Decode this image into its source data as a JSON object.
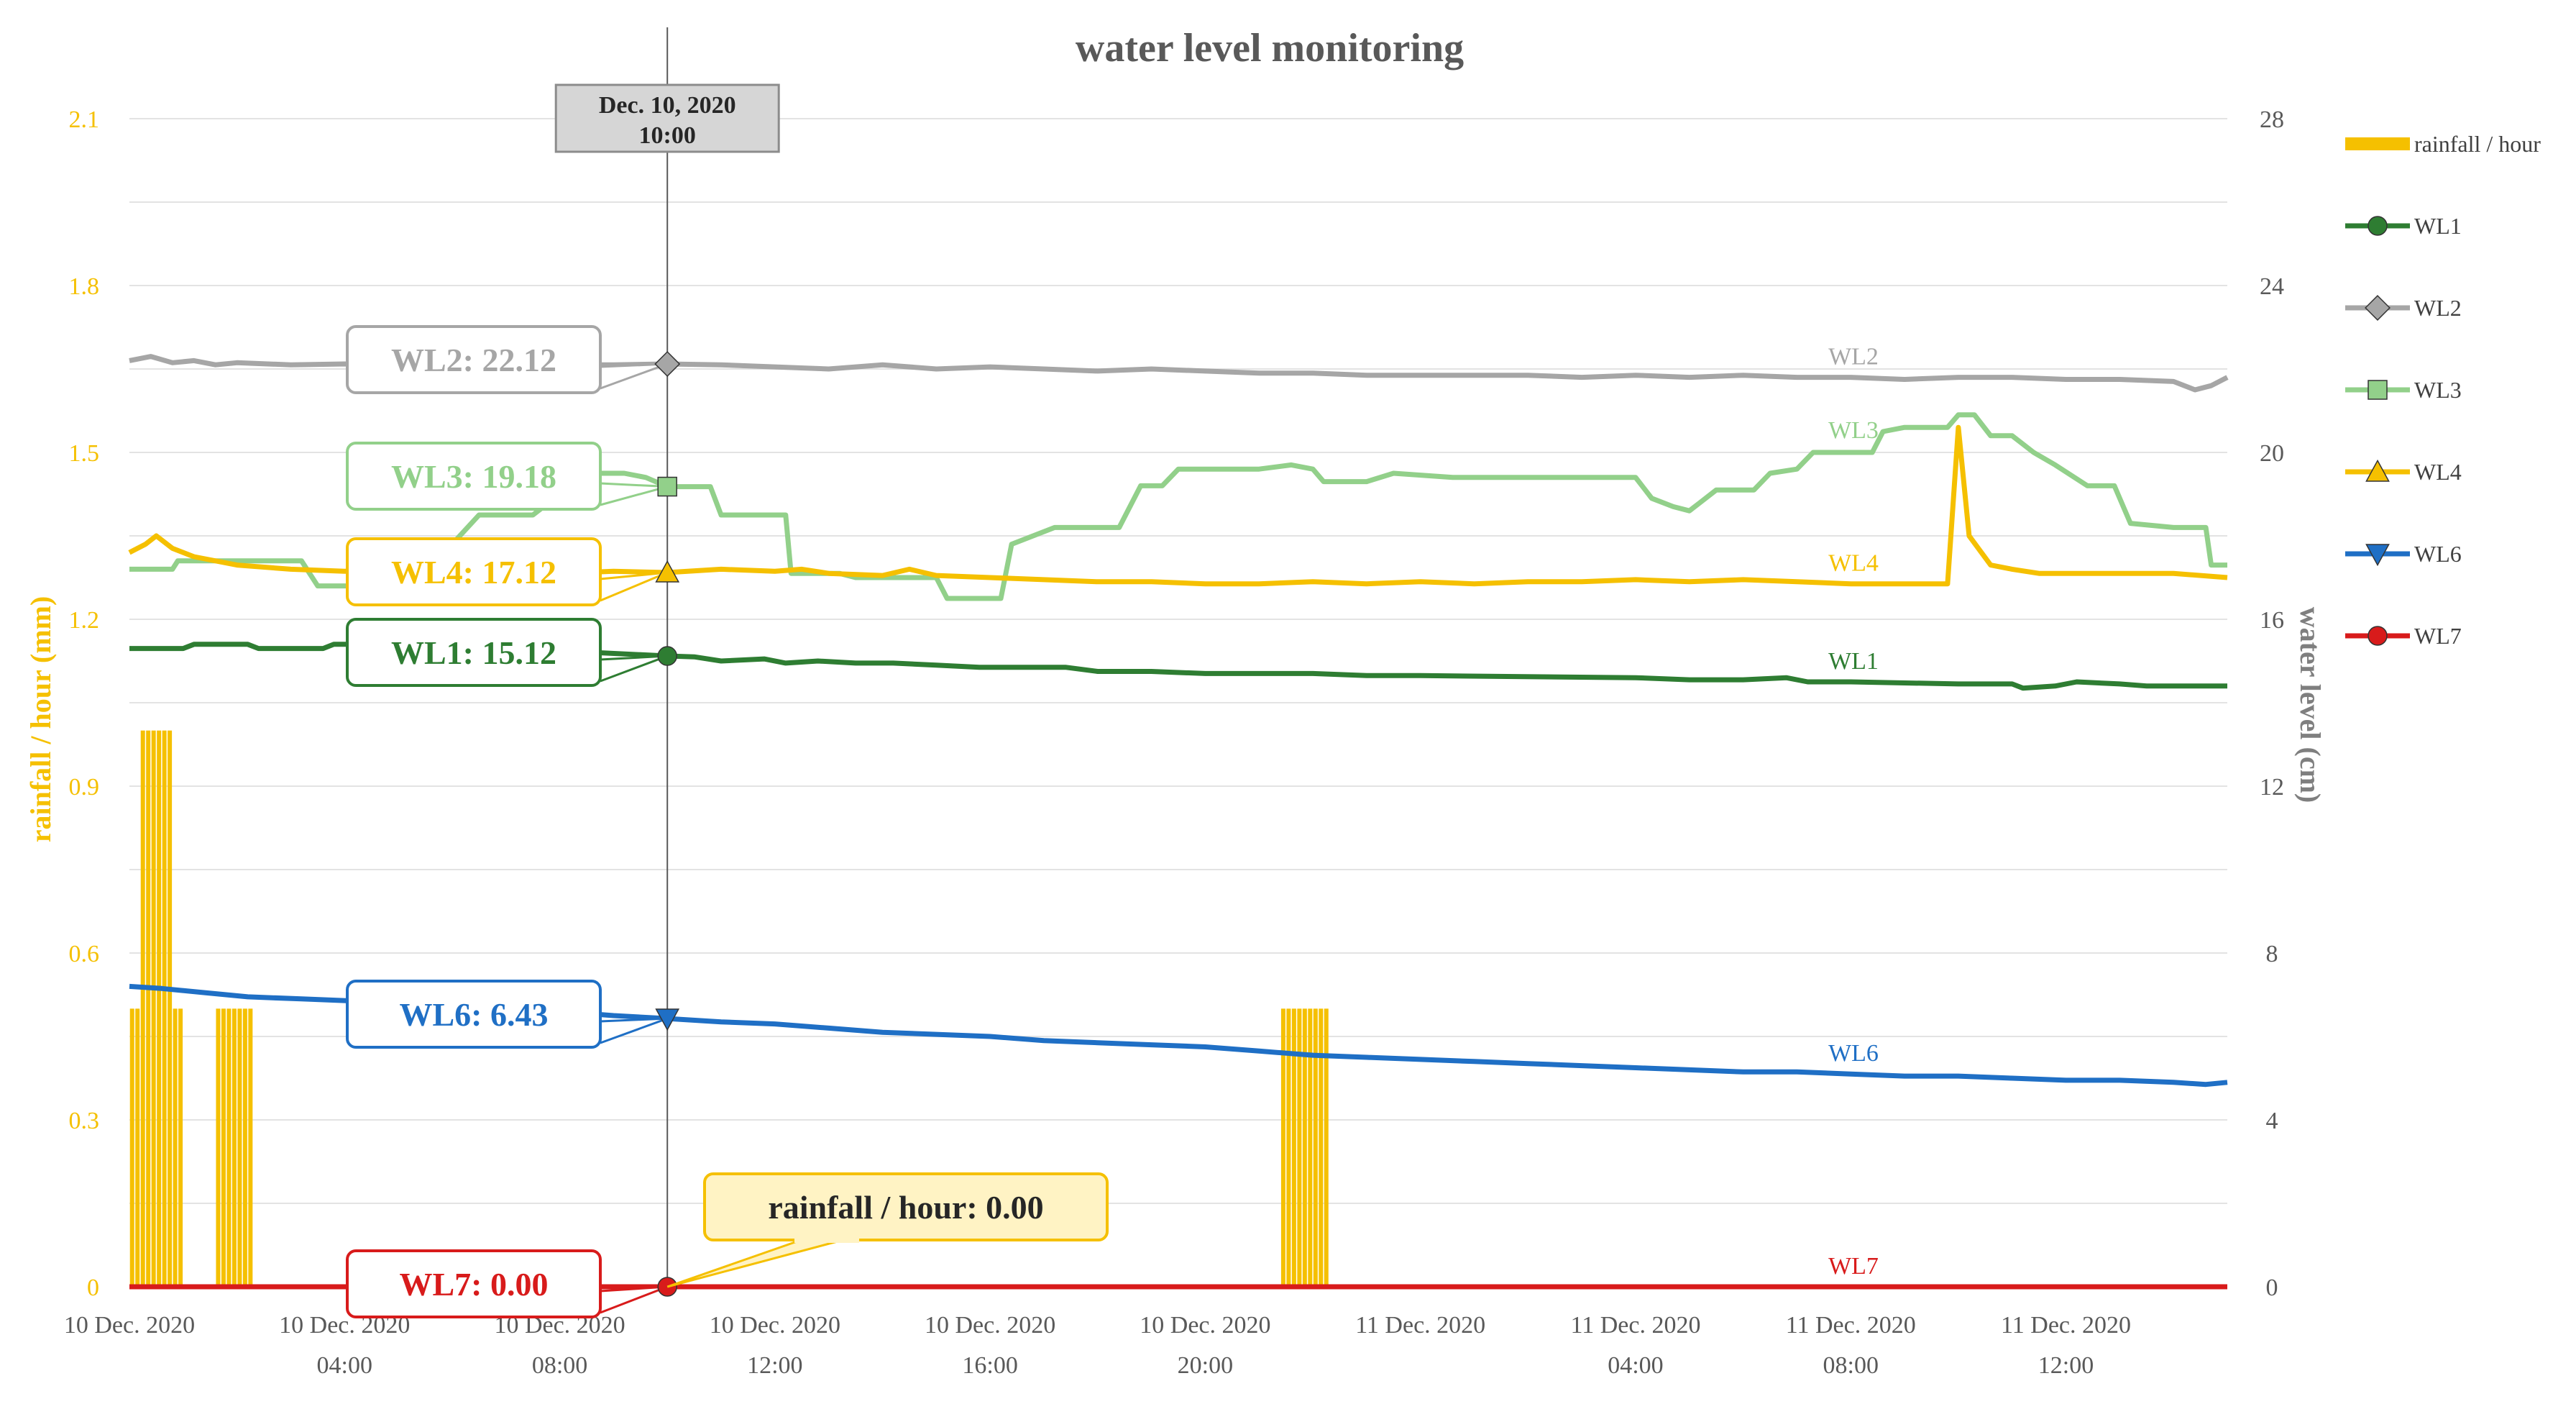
{
  "chart_data": {
    "type": "line",
    "title": "water level monitoring",
    "y_left_label": "rainfall / hour (mm)",
    "y_right_label": "water level (cm)",
    "y_left_range": [
      0,
      2.1
    ],
    "y_right_range": [
      0,
      28
    ],
    "y_left_ticks": [
      "0",
      "0.3",
      "0.6",
      "0.9",
      "1.2",
      "1.5",
      "1.8",
      "2.1"
    ],
    "y_right_ticks": [
      "0",
      "4",
      "8",
      "12",
      "16",
      "20",
      "24",
      "28"
    ],
    "x_range_hours": [
      0,
      39
    ],
    "x_ticks": [
      {
        "h": 0,
        "line1": "10 Dec. 2020",
        "line2": ""
      },
      {
        "h": 4,
        "line1": "10 Dec. 2020",
        "line2": "04:00"
      },
      {
        "h": 8,
        "line1": "10 Dec. 2020",
        "line2": "08:00"
      },
      {
        "h": 12,
        "line1": "10 Dec. 2020",
        "line2": "12:00"
      },
      {
        "h": 16,
        "line1": "10 Dec. 2020",
        "line2": "16:00"
      },
      {
        "h": 20,
        "line1": "10 Dec. 2020",
        "line2": "20:00"
      },
      {
        "h": 24,
        "line1": "11 Dec. 2020",
        "line2": ""
      },
      {
        "h": 28,
        "line1": "11 Dec. 2020",
        "line2": "04:00"
      },
      {
        "h": 32,
        "line1": "11 Dec. 2020",
        "line2": "08:00"
      },
      {
        "h": 36,
        "line1": "11 Dec. 2020",
        "line2": "12:00"
      }
    ],
    "cursor": {
      "hour": 10,
      "line1": "Dec. 10, 2020",
      "line2": "10:00"
    },
    "rainfall": {
      "name": "rainfall / hour",
      "color": "#F5C000",
      "bars": [
        {
          "h": 0.05,
          "v": 0.5
        },
        {
          "h": 0.15,
          "v": 0.5
        },
        {
          "h": 0.25,
          "v": 1.0
        },
        {
          "h": 0.35,
          "v": 1.0
        },
        {
          "h": 0.45,
          "v": 1.0
        },
        {
          "h": 0.55,
          "v": 1.0
        },
        {
          "h": 0.65,
          "v": 1.0
        },
        {
          "h": 0.75,
          "v": 1.0
        },
        {
          "h": 0.85,
          "v": 0.5
        },
        {
          "h": 0.95,
          "v": 0.5
        },
        {
          "h": 1.65,
          "v": 0.5
        },
        {
          "h": 1.75,
          "v": 0.5
        },
        {
          "h": 1.85,
          "v": 0.5
        },
        {
          "h": 1.95,
          "v": 0.5
        },
        {
          "h": 2.05,
          "v": 0.5
        },
        {
          "h": 2.15,
          "v": 0.5
        },
        {
          "h": 2.25,
          "v": 0.5
        },
        {
          "h": 21.45,
          "v": 0.5
        },
        {
          "h": 21.55,
          "v": 0.5
        },
        {
          "h": 21.65,
          "v": 0.5
        },
        {
          "h": 21.75,
          "v": 0.5
        },
        {
          "h": 21.85,
          "v": 0.5
        },
        {
          "h": 21.95,
          "v": 0.5
        },
        {
          "h": 22.05,
          "v": 0.5
        },
        {
          "h": 22.15,
          "v": 0.5
        },
        {
          "h": 22.25,
          "v": 0.5
        }
      ]
    },
    "series": [
      {
        "name": "WL1",
        "color": "#2E7D32",
        "marker": "circle",
        "callout": "WL1: 15.12",
        "cursor_value": 15.12,
        "points": [
          [
            0,
            15.3
          ],
          [
            1,
            15.3
          ],
          [
            1.2,
            15.4
          ],
          [
            2.2,
            15.4
          ],
          [
            2.4,
            15.3
          ],
          [
            3.6,
            15.3
          ],
          [
            3.8,
            15.4
          ],
          [
            4.2,
            15.4
          ],
          [
            4.4,
            15.3
          ],
          [
            5,
            15.3
          ],
          [
            8.7,
            15.2
          ],
          [
            10,
            15.12
          ],
          [
            10.5,
            15.1
          ],
          [
            11,
            15.0
          ],
          [
            11.8,
            15.05
          ],
          [
            12.2,
            14.95
          ],
          [
            12.8,
            15.0
          ],
          [
            13.5,
            14.95
          ],
          [
            14.2,
            14.95
          ],
          [
            15,
            14.9
          ],
          [
            15.8,
            14.85
          ],
          [
            16.2,
            14.85
          ],
          [
            17.4,
            14.85
          ],
          [
            18,
            14.75
          ],
          [
            19,
            14.75
          ],
          [
            20,
            14.7
          ],
          [
            21,
            14.7
          ],
          [
            22,
            14.7
          ],
          [
            23,
            14.65
          ],
          [
            24,
            14.65
          ],
          [
            28,
            14.6
          ],
          [
            29,
            14.55
          ],
          [
            30,
            14.55
          ],
          [
            30.8,
            14.6
          ],
          [
            31.2,
            14.5
          ],
          [
            32,
            14.5
          ],
          [
            34,
            14.45
          ],
          [
            35,
            14.45
          ],
          [
            35.2,
            14.35
          ],
          [
            35.8,
            14.4
          ],
          [
            36.2,
            14.5
          ],
          [
            37,
            14.45
          ],
          [
            37.5,
            14.4
          ],
          [
            39,
            14.4
          ]
        ]
      },
      {
        "name": "WL2",
        "color": "#A6A6A6",
        "marker": "diamond",
        "callout": "WL2: 22.12",
        "cursor_value": 22.12,
        "points": [
          [
            0,
            22.2
          ],
          [
            0.4,
            22.3
          ],
          [
            0.8,
            22.15
          ],
          [
            1.2,
            22.2
          ],
          [
            1.6,
            22.1
          ],
          [
            2,
            22.15
          ],
          [
            3,
            22.1
          ],
          [
            4,
            22.12
          ],
          [
            5,
            22.1
          ],
          [
            9,
            22.1
          ],
          [
            10,
            22.12
          ],
          [
            11,
            22.1
          ],
          [
            12,
            22.05
          ],
          [
            13,
            22.0
          ],
          [
            14,
            22.1
          ],
          [
            15,
            22.0
          ],
          [
            16,
            22.05
          ],
          [
            17,
            22.0
          ],
          [
            18,
            21.95
          ],
          [
            19,
            22.0
          ],
          [
            20,
            21.95
          ],
          [
            21,
            21.9
          ],
          [
            22,
            21.9
          ],
          [
            23,
            21.85
          ],
          [
            24,
            21.85
          ],
          [
            25,
            21.85
          ],
          [
            26,
            21.85
          ],
          [
            27,
            21.8
          ],
          [
            28,
            21.85
          ],
          [
            29,
            21.8
          ],
          [
            30,
            21.85
          ],
          [
            31,
            21.8
          ],
          [
            32,
            21.8
          ],
          [
            33,
            21.75
          ],
          [
            34,
            21.8
          ],
          [
            35,
            21.8
          ],
          [
            36,
            21.75
          ],
          [
            37,
            21.75
          ],
          [
            38,
            21.7
          ],
          [
            38.4,
            21.5
          ],
          [
            38.7,
            21.6
          ],
          [
            39,
            21.8
          ]
        ]
      },
      {
        "name": "WL3",
        "color": "#92D08A",
        "marker": "square",
        "callout": "WL3: 19.18",
        "cursor_value": 19.18,
        "points": [
          [
            0,
            17.2
          ],
          [
            0.8,
            17.2
          ],
          [
            0.9,
            17.4
          ],
          [
            3.2,
            17.4
          ],
          [
            3.5,
            16.8
          ],
          [
            5,
            16.8
          ],
          [
            5.2,
            17.8
          ],
          [
            6,
            17.8
          ],
          [
            6.5,
            18.5
          ],
          [
            7.5,
            18.5
          ],
          [
            8,
            19.0
          ],
          [
            8.4,
            19.5
          ],
          [
            9.2,
            19.5
          ],
          [
            9.6,
            19.4
          ],
          [
            10,
            19.18
          ],
          [
            10.8,
            19.18
          ],
          [
            11,
            18.5
          ],
          [
            12.2,
            18.5
          ],
          [
            12.3,
            17.1
          ],
          [
            13.2,
            17.1
          ],
          [
            13.5,
            17.0
          ],
          [
            15,
            17.0
          ],
          [
            15.2,
            16.5
          ],
          [
            16.2,
            16.5
          ],
          [
            16.4,
            17.8
          ],
          [
            17.2,
            18.2
          ],
          [
            18.4,
            18.2
          ],
          [
            18.8,
            19.2
          ],
          [
            19.2,
            19.2
          ],
          [
            19.5,
            19.6
          ],
          [
            21,
            19.6
          ],
          [
            21.6,
            19.7
          ],
          [
            22,
            19.6
          ],
          [
            22.2,
            19.3
          ],
          [
            23,
            19.3
          ],
          [
            23.5,
            19.5
          ],
          [
            24.6,
            19.4
          ],
          [
            28,
            19.4
          ],
          [
            28.3,
            18.9
          ],
          [
            28.7,
            18.7
          ],
          [
            29,
            18.6
          ],
          [
            29.2,
            18.8
          ],
          [
            29.5,
            19.1
          ],
          [
            30.2,
            19.1
          ],
          [
            30.5,
            19.5
          ],
          [
            31,
            19.6
          ],
          [
            31.3,
            20.0
          ],
          [
            32.4,
            20.0
          ],
          [
            32.6,
            20.5
          ],
          [
            33,
            20.6
          ],
          [
            33.8,
            20.6
          ],
          [
            34,
            20.9
          ],
          [
            34.3,
            20.9
          ],
          [
            34.6,
            20.4
          ],
          [
            35,
            20.4
          ],
          [
            35.4,
            20.0
          ],
          [
            35.8,
            19.7
          ],
          [
            36.4,
            19.2
          ],
          [
            36.9,
            19.2
          ],
          [
            37.2,
            18.3
          ],
          [
            38,
            18.2
          ],
          [
            38.4,
            18.2
          ],
          [
            38.6,
            18.2
          ],
          [
            38.7,
            17.3
          ],
          [
            39,
            17.3
          ]
        ]
      },
      {
        "name": "WL4",
        "color": "#F5C000",
        "marker": "triangle-up",
        "callout": "WL4: 17.12",
        "cursor_value": 17.12,
        "points": [
          [
            0,
            17.6
          ],
          [
            0.3,
            17.8
          ],
          [
            0.5,
            18.0
          ],
          [
            0.8,
            17.7
          ],
          [
            1.2,
            17.5
          ],
          [
            2,
            17.3
          ],
          [
            3,
            17.2
          ],
          [
            4,
            17.15
          ],
          [
            5,
            17.2
          ],
          [
            6,
            17.1
          ],
          [
            7,
            17.15
          ],
          [
            8,
            17.1
          ],
          [
            9,
            17.15
          ],
          [
            10,
            17.12
          ],
          [
            11,
            17.2
          ],
          [
            12,
            17.15
          ],
          [
            12.5,
            17.2
          ],
          [
            13,
            17.1
          ],
          [
            14,
            17.05
          ],
          [
            14.5,
            17.2
          ],
          [
            15,
            17.05
          ],
          [
            16,
            17.0
          ],
          [
            17,
            16.95
          ],
          [
            18,
            16.9
          ],
          [
            19,
            16.9
          ],
          [
            20,
            16.85
          ],
          [
            21,
            16.85
          ],
          [
            22,
            16.9
          ],
          [
            23,
            16.85
          ],
          [
            24,
            16.9
          ],
          [
            25,
            16.85
          ],
          [
            26,
            16.9
          ],
          [
            27,
            16.9
          ],
          [
            28,
            16.95
          ],
          [
            29,
            16.9
          ],
          [
            30,
            16.95
          ],
          [
            31,
            16.9
          ],
          [
            32,
            16.85
          ],
          [
            33,
            16.85
          ],
          [
            33.8,
            16.85
          ],
          [
            34.0,
            20.6
          ],
          [
            34.2,
            18.0
          ],
          [
            34.6,
            17.3
          ],
          [
            35,
            17.2
          ],
          [
            35.5,
            17.1
          ],
          [
            36,
            17.1
          ],
          [
            37,
            17.1
          ],
          [
            38,
            17.1
          ],
          [
            39,
            17.0
          ]
        ]
      },
      {
        "name": "WL6",
        "color": "#1F6FC5",
        "marker": "triangle-down",
        "callout": "WL6: 6.43",
        "cursor_value": 6.43,
        "points": [
          [
            0,
            7.2
          ],
          [
            0.6,
            7.15
          ],
          [
            1.4,
            7.05
          ],
          [
            2.2,
            6.95
          ],
          [
            3.2,
            6.9
          ],
          [
            4.2,
            6.85
          ],
          [
            5,
            6.8
          ],
          [
            6,
            6.75
          ],
          [
            7,
            6.7
          ],
          [
            8,
            6.6
          ],
          [
            9,
            6.5
          ],
          [
            10,
            6.43
          ],
          [
            11,
            6.35
          ],
          [
            12,
            6.3
          ],
          [
            13,
            6.2
          ],
          [
            14,
            6.1
          ],
          [
            15,
            6.05
          ],
          [
            16,
            6.0
          ],
          [
            17,
            5.9
          ],
          [
            18,
            5.85
          ],
          [
            19,
            5.8
          ],
          [
            20,
            5.75
          ],
          [
            21,
            5.65
          ],
          [
            22,
            5.55
          ],
          [
            23,
            5.5
          ],
          [
            24,
            5.45
          ],
          [
            25,
            5.4
          ],
          [
            26,
            5.35
          ],
          [
            27,
            5.3
          ],
          [
            28,
            5.25
          ],
          [
            29,
            5.2
          ],
          [
            30,
            5.15
          ],
          [
            31,
            5.15
          ],
          [
            32,
            5.1
          ],
          [
            33,
            5.05
          ],
          [
            34,
            5.05
          ],
          [
            35,
            5.0
          ],
          [
            36,
            4.95
          ],
          [
            37,
            4.95
          ],
          [
            38,
            4.9
          ],
          [
            38.6,
            4.85
          ],
          [
            39,
            4.9
          ]
        ]
      },
      {
        "name": "WL7",
        "color": "#D81B1B",
        "marker": "circle",
        "callout": "WL7: 0.00",
        "cursor_value": 0,
        "points": [
          [
            0,
            0
          ],
          [
            39,
            0
          ]
        ]
      }
    ],
    "rainfall_callout": "rainfall / hour: 0.00",
    "legend": [
      {
        "name": "rainfall / hour",
        "color": "#F5C000",
        "marker": "bar"
      },
      {
        "name": "WL1",
        "color": "#2E7D32",
        "marker": "circle"
      },
      {
        "name": "WL2",
        "color": "#A6A6A6",
        "marker": "diamond"
      },
      {
        "name": "WL3",
        "color": "#92D08A",
        "marker": "square"
      },
      {
        "name": "WL4",
        "color": "#F5C000",
        "marker": "triangle-up"
      },
      {
        "name": "WL6",
        "color": "#1F6FC5",
        "marker": "triangle-down"
      },
      {
        "name": "WL7",
        "color": "#D81B1B",
        "marker": "circle"
      }
    ],
    "legend_position": "right",
    "grid": true
  }
}
